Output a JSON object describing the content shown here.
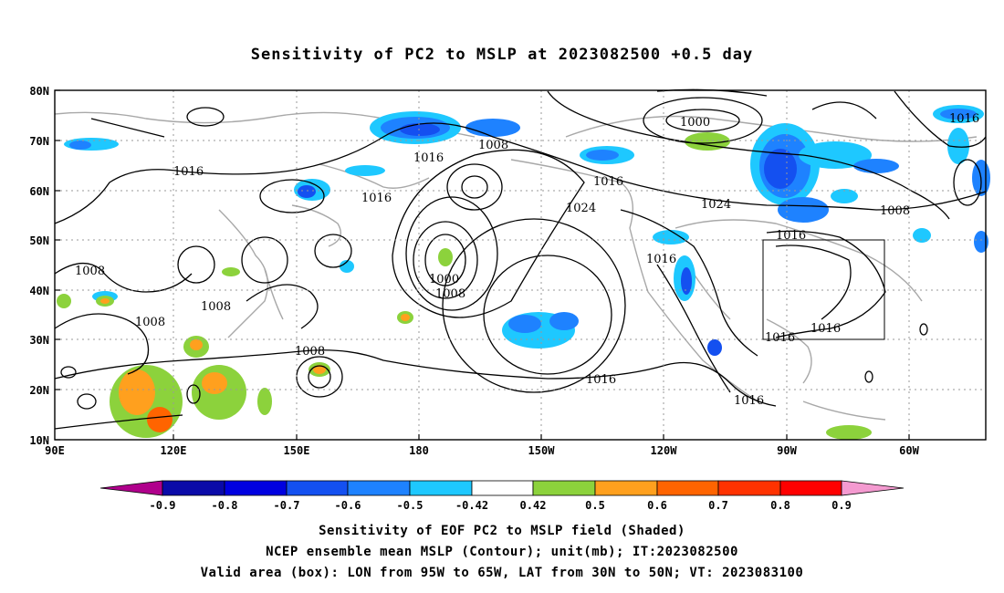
{
  "title": "Sensitivity of PC2 to MSLP at 2023082500 +0.5 day",
  "map": {
    "lat_labels": [
      "80N",
      "70N",
      "60N",
      "50N",
      "40N",
      "30N",
      "20N",
      "10N"
    ],
    "lon_labels": [
      "90E",
      "120E",
      "150E",
      "180",
      "150W",
      "120W",
      "90W",
      "60W"
    ],
    "box_label": "Valid area box",
    "contour_labels": [
      {
        "text": "1016",
        "slot": "a"
      },
      {
        "text": "1016",
        "slot": "b"
      },
      {
        "text": "1016",
        "slot": "c"
      },
      {
        "text": "1016",
        "slot": "d"
      },
      {
        "text": "1016",
        "slot": "e"
      },
      {
        "text": "1016",
        "slot": "f"
      },
      {
        "text": "1016",
        "slot": "g"
      },
      {
        "text": "1016",
        "slot": "h"
      },
      {
        "text": "1016",
        "slot": "i"
      },
      {
        "text": "1016",
        "slot": "j"
      },
      {
        "text": "1016",
        "slot": "k"
      },
      {
        "text": "1008",
        "slot": "l"
      },
      {
        "text": "1008",
        "slot": "m"
      },
      {
        "text": "1008",
        "slot": "n"
      },
      {
        "text": "1008",
        "slot": "o"
      },
      {
        "text": "1008",
        "slot": "p"
      },
      {
        "text": "1008",
        "slot": "q"
      },
      {
        "text": "1008",
        "slot": "r"
      },
      {
        "text": "1000",
        "slot": "s"
      },
      {
        "text": "1000",
        "slot": "t"
      },
      {
        "text": "1024",
        "slot": "u"
      },
      {
        "text": "1024",
        "slot": "v"
      }
    ]
  },
  "colorbar": {
    "labels": [
      "-0.9",
      "-0.8",
      "-0.7",
      "-0.6",
      "-0.5",
      "-0.42",
      "0.42",
      "0.5",
      "0.6",
      "0.7",
      "0.8",
      "0.9"
    ],
    "colors": [
      "#b0008c",
      "#0a0aa8",
      "#0000e0",
      "#1450f0",
      "#1e82ff",
      "#1ec8ff",
      "#ffffff",
      "#8cd23c",
      "#ffa01e",
      "#ff6400",
      "#ff3200",
      "#ff0000",
      "#f49ad0"
    ]
  },
  "captions": {
    "line1": "Sensitivity of EOF PC2 to MSLP field (Shaded)",
    "line2": "NCEP ensemble mean MSLP (Contour); unit(mb); IT:2023082500",
    "line3": "Valid area (box): LON from 95W to 65W, LAT from 30N to 50N; VT: 2023083100"
  }
}
